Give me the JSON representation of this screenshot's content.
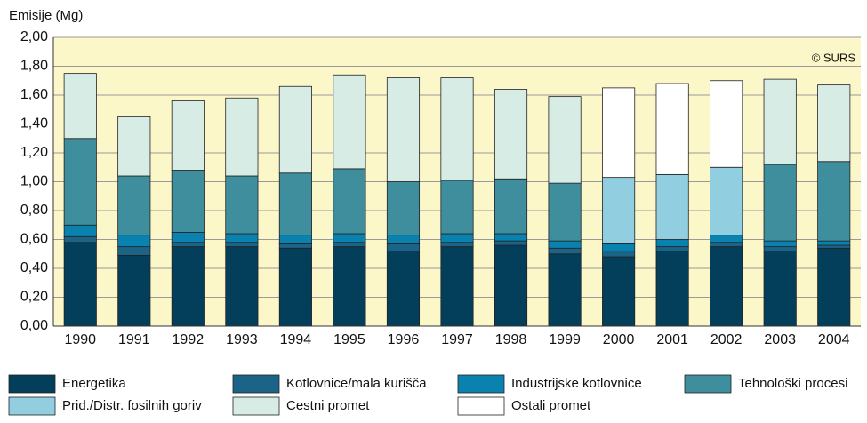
{
  "chart_data": {
    "type": "stacked_bar",
    "y_axis_label": "Emisije (Mg)",
    "annotation": "© SURS",
    "categories": [
      "1990",
      "1991",
      "1992",
      "1993",
      "1994",
      "1995",
      "1996",
      "1997",
      "1998",
      "1999",
      "2000",
      "2001",
      "2002",
      "2003",
      "2004"
    ],
    "series": [
      {
        "name": "Energetika",
        "color": "#033f5a",
        "values": [
          0.58,
          0.49,
          0.55,
          0.55,
          0.54,
          0.55,
          0.52,
          0.55,
          0.56,
          0.5,
          0.48,
          0.52,
          0.55,
          0.52,
          0.54
        ]
      },
      {
        "name": "Kotlovnice/mala kurišča",
        "color": "#1b6487",
        "values": [
          0.04,
          0.06,
          0.03,
          0.03,
          0.03,
          0.03,
          0.05,
          0.03,
          0.03,
          0.04,
          0.04,
          0.03,
          0.03,
          0.03,
          0.02
        ]
      },
      {
        "name": "Industrijske kotlovnice",
        "color": "#0a82b0",
        "values": [
          0.08,
          0.08,
          0.07,
          0.06,
          0.06,
          0.06,
          0.06,
          0.06,
          0.05,
          0.05,
          0.05,
          0.05,
          0.05,
          0.04,
          0.03
        ]
      },
      {
        "name": "Tehnološki procesi",
        "color": "#3f8e9e",
        "values": [
          0.6,
          0.41,
          0.43,
          0.4,
          0.43,
          0.45,
          0.37,
          0.37,
          0.38,
          0.4,
          0,
          0,
          0,
          0.53,
          0.55
        ]
      },
      {
        "name": "Prid./Distr. fosilnih goriv",
        "color": "#91cfe0",
        "values": [
          0,
          0,
          0,
          0,
          0,
          0,
          0,
          0,
          0,
          0,
          0.46,
          0.45,
          0.47,
          0,
          0
        ]
      },
      {
        "name": "Cestni promet",
        "color": "#d7ece5",
        "values": [
          0.45,
          0.41,
          0.48,
          0.54,
          0.6,
          0.65,
          0.72,
          0.71,
          0.62,
          0.6,
          0,
          0,
          0,
          0.59,
          0.53
        ]
      },
      {
        "name": "Ostali promet",
        "color": "#ffffff",
        "values": [
          0,
          0,
          0,
          0,
          0,
          0,
          0,
          0,
          0,
          0,
          0.62,
          0.63,
          0.6,
          0,
          0
        ]
      }
    ],
    "ylim": [
      0,
      2
    ],
    "yticks": [
      {
        "value": 0,
        "label": "0,00"
      },
      {
        "value": 0.2,
        "label": "0,20"
      },
      {
        "value": 0.4,
        "label": "0,40"
      },
      {
        "value": 0.6,
        "label": "0,60"
      },
      {
        "value": 0.8,
        "label": "0,80"
      },
      {
        "value": 1.0,
        "label": "1,00"
      },
      {
        "value": 1.2,
        "label": "1,20"
      },
      {
        "value": 1.4,
        "label": "1,40"
      },
      {
        "value": 1.6,
        "label": "1,60"
      },
      {
        "value": 1.8,
        "label": "1,80"
      },
      {
        "value": 2.0,
        "label": "2,00"
      }
    ],
    "grid": true
  }
}
